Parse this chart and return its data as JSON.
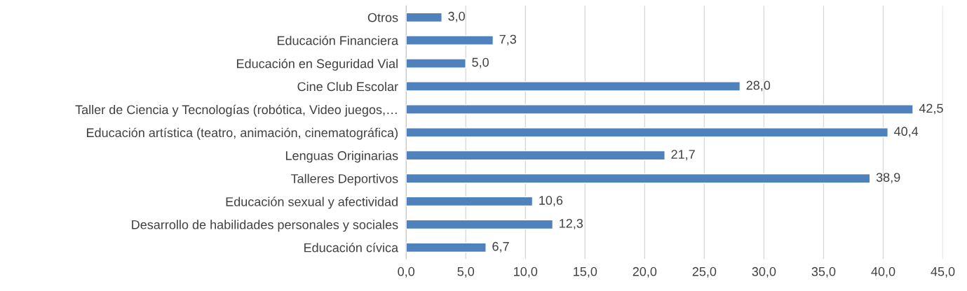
{
  "chart_data": {
    "type": "bar",
    "orientation": "horizontal",
    "categories": [
      "Otros",
      "Educación Financiera",
      "Educación en Seguridad Vial",
      "Cine Club Escolar",
      "Taller de Ciencia y Tecnologías (robótica, Video juegos,…",
      "Educación artística (teatro, animación, cinematográfica)",
      "Lenguas Originarias",
      "Talleres Deportivos",
      "Educación sexual y afectividad",
      "Desarrollo de habilidades personales y sociales",
      "Educación cívica"
    ],
    "values": [
      3.0,
      7.3,
      5.0,
      28.0,
      42.5,
      40.4,
      21.7,
      38.9,
      10.6,
      12.3,
      6.7
    ],
    "value_labels": [
      "3,0",
      "7,3",
      "5,0",
      "28,0",
      "42,5",
      "40,4",
      "21,7",
      "38,9",
      "10,6",
      "12,3",
      "6,7"
    ],
    "color": "#4f81bd",
    "xlim": [
      0,
      45
    ],
    "xticks": [
      {
        "value": 0,
        "label": "0,0"
      },
      {
        "value": 5,
        "label": "5,0"
      },
      {
        "value": 10,
        "label": "10,0"
      },
      {
        "value": 15,
        "label": "15,0"
      },
      {
        "value": 20,
        "label": "20,0"
      },
      {
        "value": 25,
        "label": "25,0"
      },
      {
        "value": 30,
        "label": "30,0"
      },
      {
        "value": 35,
        "label": "35,0"
      },
      {
        "value": 40,
        "label": "40,0"
      },
      {
        "value": 45,
        "label": "45,0"
      }
    ],
    "grid": "x",
    "legend": false
  }
}
